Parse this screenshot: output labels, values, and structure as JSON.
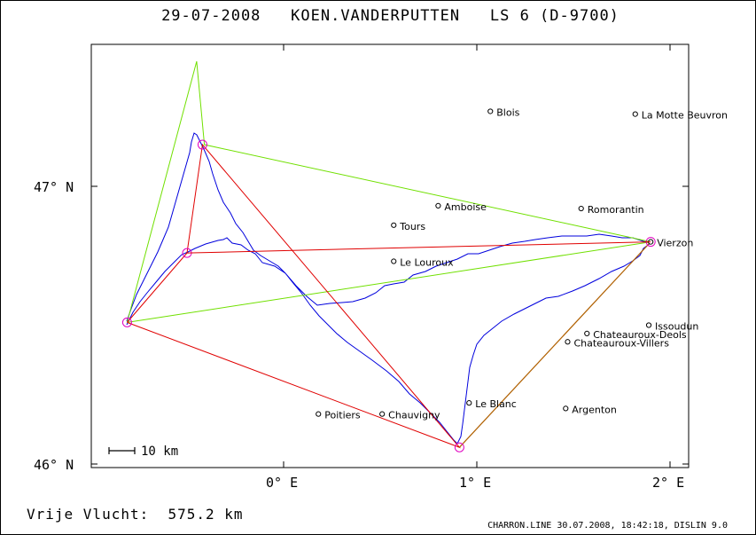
{
  "header": {
    "date": "29-07-2008",
    "pilot": "KOEN.VANDERPUTTEN",
    "glider": "LS 6 (D-9700)"
  },
  "map": {
    "lat_labels": [
      {
        "text": "47° N",
        "lat": 47.0
      },
      {
        "text": "46° N",
        "lat": 46.0
      }
    ],
    "lon_labels": [
      {
        "text": "0° E",
        "lon": 0.0
      },
      {
        "text": "1° E",
        "lon": 1.0
      },
      {
        "text": "2° E",
        "lon": 2.0
      }
    ],
    "scale_label": "10 km",
    "towns": [
      {
        "name": "Blois",
        "lat": 47.27,
        "lon": 1.07
      },
      {
        "name": "La Motte Beuvron",
        "lat": 47.26,
        "lon": 1.82
      },
      {
        "name": "Amboise",
        "lat": 46.93,
        "lon": 0.8
      },
      {
        "name": "Romorantin",
        "lat": 46.92,
        "lon": 1.54
      },
      {
        "name": "Tours",
        "lat": 46.86,
        "lon": 0.57
      },
      {
        "name": "Vierzon",
        "lat": 46.8,
        "lon": 1.9
      },
      {
        "name": "Le Louroux",
        "lat": 46.73,
        "lon": 0.57
      },
      {
        "name": "Issoudun",
        "lat": 46.5,
        "lon": 1.89
      },
      {
        "name": "Chateauroux-Deols",
        "lat": 46.47,
        "lon": 1.57
      },
      {
        "name": "Chateauroux-Villers",
        "lat": 46.44,
        "lon": 1.47
      },
      {
        "name": "Le Blanc",
        "lat": 46.22,
        "lon": 0.96
      },
      {
        "name": "Argenton",
        "lat": 46.2,
        "lon": 1.46
      },
      {
        "name": "Poitiers",
        "lat": 46.18,
        "lon": 0.18
      },
      {
        "name": "Chauvigny",
        "lat": 46.18,
        "lon": 0.51
      }
    ],
    "task_turnpoints": [
      {
        "lat": 46.51,
        "lon": -0.81
      },
      {
        "lat": 46.76,
        "lon": -0.5
      },
      {
        "lat": 47.15,
        "lon": -0.42
      },
      {
        "lat": 46.06,
        "lon": 0.91
      },
      {
        "lat": 46.8,
        "lon": 1.9
      }
    ],
    "fai_triangle": [
      {
        "lat": 46.51,
        "lon": -0.81
      },
      {
        "lat": 47.45,
        "lon": -0.45
      },
      {
        "lat": 47.15,
        "lon": -0.41
      },
      {
        "lat": 46.8,
        "lon": 1.9
      },
      {
        "lat": 46.51,
        "lon": -0.81
      }
    ],
    "colors": {
      "task": "#e00000",
      "fai": "#70e000",
      "leg_last": "#b06000",
      "track": "#0000dd",
      "turnpoint": "#e000c0"
    }
  },
  "footer": {
    "distance_label": "Vrije Vlucht:",
    "distance_value": "575.2 km",
    "file_info": "CHARRON.LINE 30.07.2008, 18:42:18, DISLIN 9.0"
  }
}
